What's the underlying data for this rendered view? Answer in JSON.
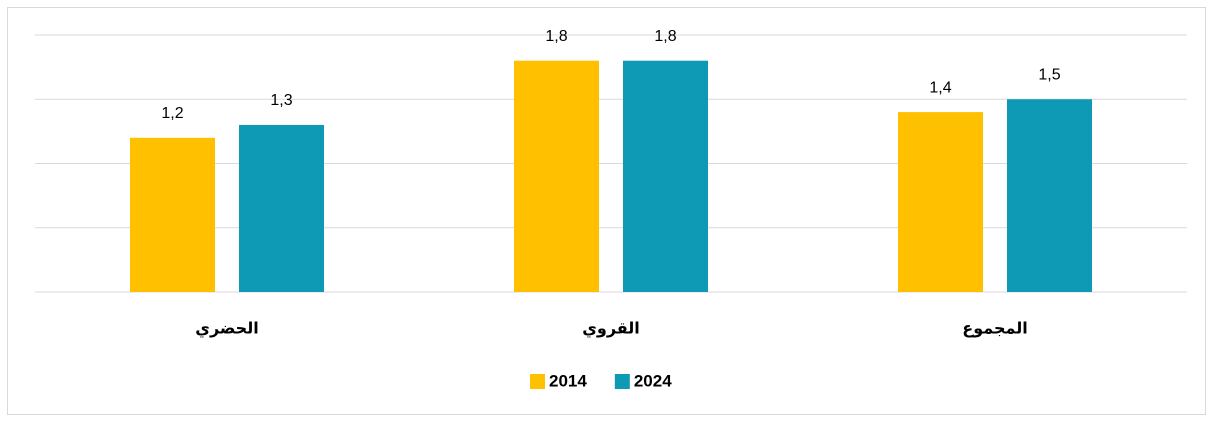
{
  "chart_data": {
    "type": "bar",
    "categories": [
      "الحضري",
      "القروي",
      "المجموع"
    ],
    "series": [
      {
        "name": "2014",
        "color": "#ffc000",
        "values": [
          1.2,
          1.8,
          1.4
        ],
        "value_labels": [
          "1,2",
          "1,8",
          "1,4"
        ]
      },
      {
        "name": "2024",
        "color": "#0e9ab4",
        "values": [
          1.3,
          1.8,
          1.5
        ],
        "value_labels": [
          "1,3",
          "1,8",
          "1,5"
        ]
      }
    ],
    "ylim": [
      0,
      2
    ],
    "yticks": [
      0,
      0.5,
      1,
      1.5,
      2
    ],
    "grid": true,
    "legend": "bottom"
  }
}
